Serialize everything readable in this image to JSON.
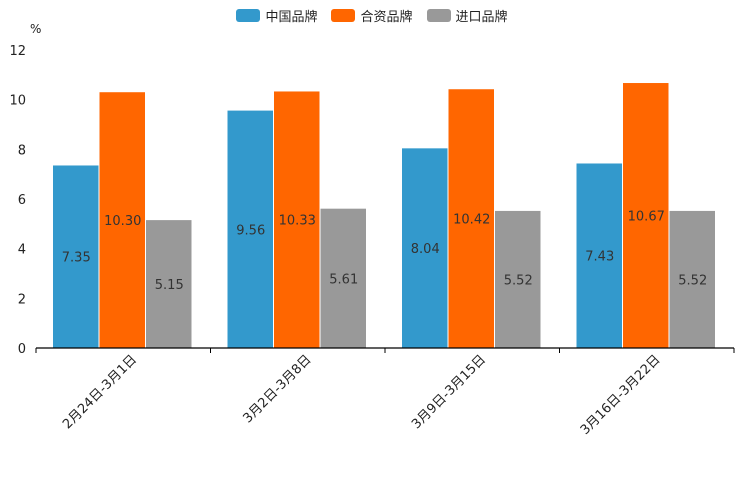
{
  "chart_data": {
    "type": "bar",
    "unit_label": "%",
    "categories": [
      "2月24日-3月1日",
      "3月2日-3月8日",
      "3月9日-3月15日",
      "3月16日-3月22日"
    ],
    "series": [
      {
        "name": "中国品牌",
        "color": "#3399cc",
        "values": [
          7.35,
          9.56,
          8.04,
          7.43
        ]
      },
      {
        "name": "合资品牌",
        "color": "#ff6600",
        "values": [
          10.3,
          10.33,
          10.42,
          10.67
        ]
      },
      {
        "name": "进口品牌",
        "color": "#999999",
        "values": [
          5.15,
          5.61,
          5.52,
          5.52
        ]
      }
    ],
    "value_labels": [
      [
        "7.35",
        "9.56",
        "8.04",
        "7.43"
      ],
      [
        "10.30",
        "10.33",
        "10.42",
        "10.67"
      ],
      [
        "5.15",
        "5.61",
        "5.52",
        "5.52"
      ]
    ],
    "ylim": [
      0,
      12
    ],
    "yticks": [
      0,
      2,
      4,
      6,
      8,
      10,
      12
    ],
    "ytick_labels": [
      "0",
      "2",
      "4",
      "6",
      "8",
      "10",
      "12"
    ],
    "legend_position": "top-center",
    "grid": false
  }
}
